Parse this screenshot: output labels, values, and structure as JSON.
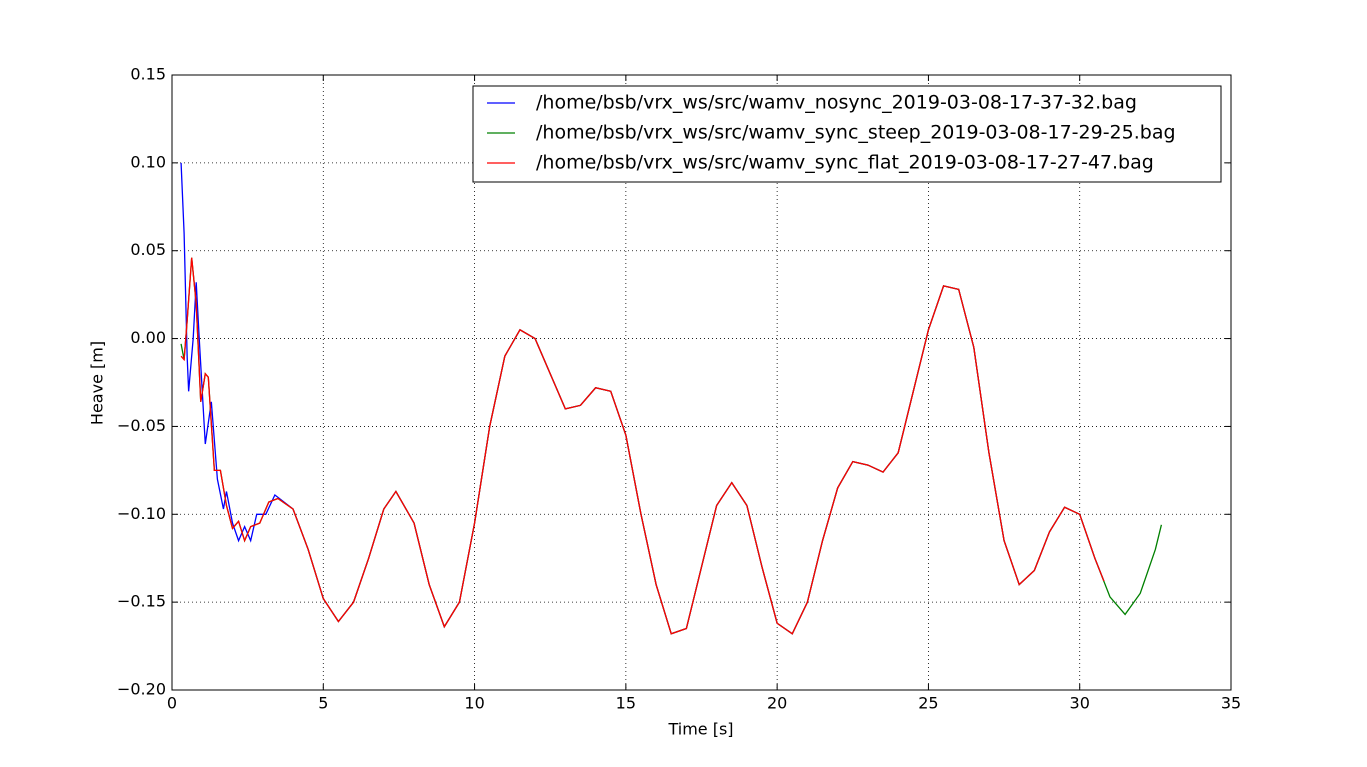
{
  "chart_data": {
    "type": "line",
    "x_label": "Time [s]",
    "y_label": "Heave [m]",
    "xlim": [
      0,
      35
    ],
    "xticks": [
      0,
      5,
      10,
      15,
      20,
      25,
      30,
      35
    ],
    "ylim": [
      -0.2,
      0.15
    ],
    "yticks": [
      {
        "value": -0.2,
        "label": "−0.20"
      },
      {
        "value": -0.15,
        "label": "−0.15"
      },
      {
        "value": -0.1,
        "label": "−0.10"
      },
      {
        "value": -0.05,
        "label": "−0.05"
      },
      {
        "value": 0,
        "label": "0.00"
      },
      {
        "value": 0.05,
        "label": "0.05"
      },
      {
        "value": 0.1,
        "label": "0.10"
      },
      0.15
    ],
    "grid": true,
    "legend": "upper right",
    "series": [
      {
        "name": "/home/bsb/vrx_ws/src/wamv_nosync_2019-03-08-17-37-32.bag",
        "color": "#0000ff",
        "x": [
          0.3,
          0.4,
          0.5,
          0.55,
          0.7,
          0.8,
          0.9,
          1.1,
          1.3,
          1.5,
          1.7,
          1.8,
          2.0,
          2.2,
          2.4,
          2.6,
          2.8,
          3.1,
          3.4,
          3.7,
          4.0,
          4.5,
          5.0,
          5.5,
          6.0,
          6.5,
          7.0,
          7.4,
          8.0,
          8.5,
          9.0,
          9.5,
          10.0,
          10.5,
          11.0,
          11.5,
          12.0,
          12.5,
          13.0,
          13.5,
          14.0,
          14.5,
          15.0,
          15.5,
          16.0,
          16.5,
          17.0,
          17.5,
          18.0,
          18.5,
          19.0,
          19.5,
          20.0,
          20.5,
          21.0,
          21.5,
          22.0,
          22.5,
          23.0,
          23.5,
          24.0,
          24.5,
          25.0,
          25.5,
          26.0,
          26.5,
          27.0,
          27.5,
          28.0,
          28.5,
          29.0,
          29.5,
          30.0,
          30.5,
          30.8
        ],
        "values": [
          0.1,
          0.06,
          -0.01,
          -0.03,
          0.0,
          0.032,
          0.0,
          -0.06,
          -0.036,
          -0.08,
          -0.097,
          -0.087,
          -0.105,
          -0.115,
          -0.107,
          -0.115,
          -0.1,
          -0.1,
          -0.089,
          -0.093,
          -0.097,
          -0.12,
          -0.148,
          -0.161,
          -0.15,
          -0.125,
          -0.097,
          -0.087,
          -0.105,
          -0.14,
          -0.164,
          -0.15,
          -0.105,
          -0.05,
          -0.01,
          0.005,
          0.0,
          -0.02,
          -0.04,
          -0.038,
          -0.028,
          -0.03,
          -0.055,
          -0.1,
          -0.14,
          -0.168,
          -0.165,
          -0.13,
          -0.095,
          -0.082,
          -0.095,
          -0.13,
          -0.162,
          -0.168,
          -0.15,
          -0.115,
          -0.085,
          -0.07,
          -0.072,
          -0.076,
          -0.065,
          -0.03,
          0.005,
          0.03,
          0.028,
          -0.005,
          -0.065,
          -0.115,
          -0.14,
          -0.132,
          -0.11,
          -0.096,
          -0.1,
          -0.125,
          -0.138
        ]
      },
      {
        "name": "/home/bsb/vrx_ws/src/wamv_sync_steep_2019-03-08-17-29-25.bag",
        "color": "#008000",
        "x": [
          0.3,
          0.4,
          0.5,
          0.65,
          0.8,
          0.95,
          1.1,
          1.2,
          1.4,
          1.6,
          1.8,
          2.0,
          2.2,
          2.4,
          2.6,
          2.9,
          3.2,
          3.5,
          4.0,
          4.5,
          5.0,
          5.5,
          6.0,
          6.5,
          7.0,
          7.4,
          8.0,
          8.5,
          9.0,
          9.5,
          10.0,
          10.5,
          11.0,
          11.5,
          12.0,
          12.5,
          13.0,
          13.5,
          14.0,
          14.5,
          15.0,
          15.5,
          16.0,
          16.5,
          17.0,
          17.5,
          18.0,
          18.5,
          19.0,
          19.5,
          20.0,
          20.5,
          21.0,
          21.5,
          22.0,
          22.5,
          23.0,
          23.5,
          24.0,
          24.5,
          25.0,
          25.5,
          26.0,
          26.5,
          27.0,
          27.5,
          28.0,
          28.5,
          29.0,
          29.5,
          30.0,
          30.5,
          31.0,
          31.5,
          32.0,
          32.5,
          32.7
        ],
        "values": [
          -0.003,
          -0.012,
          0.01,
          0.046,
          0.02,
          -0.036,
          -0.02,
          -0.022,
          -0.075,
          -0.075,
          -0.095,
          -0.108,
          -0.104,
          -0.115,
          -0.107,
          -0.105,
          -0.093,
          -0.091,
          -0.097,
          -0.12,
          -0.148,
          -0.161,
          -0.15,
          -0.125,
          -0.097,
          -0.087,
          -0.105,
          -0.14,
          -0.164,
          -0.15,
          -0.105,
          -0.05,
          -0.01,
          0.005,
          0.0,
          -0.02,
          -0.04,
          -0.038,
          -0.028,
          -0.03,
          -0.055,
          -0.1,
          -0.14,
          -0.168,
          -0.165,
          -0.13,
          -0.095,
          -0.082,
          -0.095,
          -0.13,
          -0.162,
          -0.168,
          -0.15,
          -0.115,
          -0.085,
          -0.07,
          -0.072,
          -0.076,
          -0.065,
          -0.03,
          0.005,
          0.03,
          0.028,
          -0.005,
          -0.065,
          -0.115,
          -0.14,
          -0.132,
          -0.11,
          -0.096,
          -0.1,
          -0.125,
          -0.147,
          -0.157,
          -0.145,
          -0.12,
          -0.106
        ]
      },
      {
        "name": "/home/bsb/vrx_ws/src/wamv_sync_flat_2019-03-08-17-27-47.bag",
        "color": "#ff0000",
        "x": [
          0.3,
          0.4,
          0.5,
          0.65,
          0.8,
          0.95,
          1.1,
          1.2,
          1.4,
          1.6,
          1.8,
          2.0,
          2.2,
          2.4,
          2.6,
          2.9,
          3.2,
          3.5,
          4.0,
          4.5,
          5.0,
          5.5,
          6.0,
          6.5,
          7.0,
          7.4,
          8.0,
          8.5,
          9.0,
          9.5,
          10.0,
          10.5,
          11.0,
          11.5,
          12.0,
          12.5,
          13.0,
          13.5,
          14.0,
          14.5,
          15.0,
          15.5,
          16.0,
          16.5,
          17.0,
          17.5,
          18.0,
          18.5,
          19.0,
          19.5,
          20.0,
          20.5,
          21.0,
          21.5,
          22.0,
          22.5,
          23.0,
          23.5,
          24.0,
          24.5,
          25.0,
          25.5,
          26.0,
          26.5,
          27.0,
          27.5,
          28.0,
          28.5,
          29.0,
          29.5,
          30.0,
          30.5,
          30.8
        ],
        "values": [
          -0.01,
          -0.012,
          0.01,
          0.046,
          0.02,
          -0.036,
          -0.02,
          -0.022,
          -0.075,
          -0.075,
          -0.095,
          -0.108,
          -0.104,
          -0.115,
          -0.107,
          -0.105,
          -0.093,
          -0.091,
          -0.097,
          -0.12,
          -0.148,
          -0.161,
          -0.15,
          -0.125,
          -0.097,
          -0.087,
          -0.105,
          -0.14,
          -0.164,
          -0.15,
          -0.105,
          -0.05,
          -0.01,
          0.005,
          0.0,
          -0.02,
          -0.04,
          -0.038,
          -0.028,
          -0.03,
          -0.055,
          -0.1,
          -0.14,
          -0.168,
          -0.165,
          -0.13,
          -0.095,
          -0.082,
          -0.095,
          -0.13,
          -0.162,
          -0.168,
          -0.15,
          -0.115,
          -0.085,
          -0.07,
          -0.072,
          -0.076,
          -0.065,
          -0.03,
          0.005,
          0.03,
          0.028,
          -0.005,
          -0.065,
          -0.115,
          -0.14,
          -0.132,
          -0.11,
          -0.096,
          -0.1,
          -0.125,
          -0.138
        ]
      }
    ]
  }
}
